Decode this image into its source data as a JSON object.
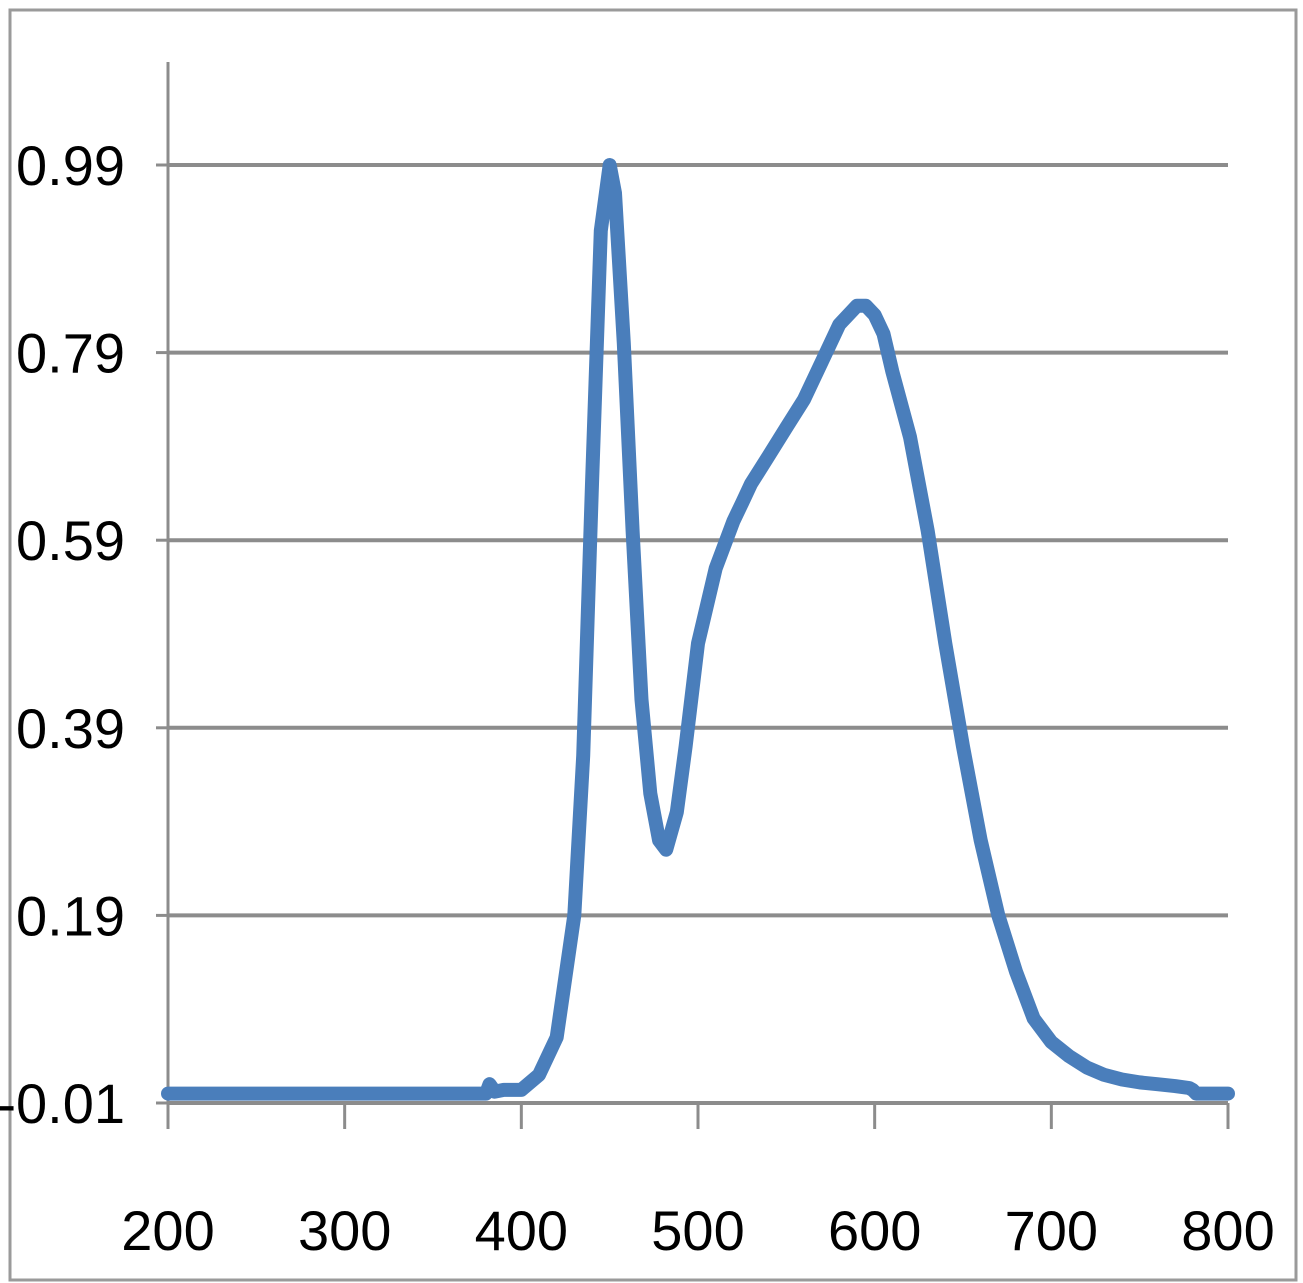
{
  "chart_data": {
    "type": "line",
    "title": "",
    "xlabel": "",
    "ylabel": "",
    "xlim": [
      200,
      800
    ],
    "ylim": [
      -0.01,
      0.99
    ],
    "x_ticks": [
      "200",
      "300",
      "400",
      "500",
      "600",
      "700",
      "800"
    ],
    "y_ticks": [
      "-0.01",
      "0.19",
      "0.39",
      "0.59",
      "0.79",
      "0.99"
    ],
    "grid": "horizontal",
    "legend": "none",
    "series": [
      {
        "color": "#4a7ebb",
        "x": [
          200,
          300,
          380,
          382,
          385,
          390,
          400,
          410,
          420,
          430,
          435,
          440,
          445,
          450,
          453,
          458,
          463,
          468,
          473,
          478,
          482,
          488,
          493,
          500,
          510,
          520,
          525,
          530,
          540,
          550,
          560,
          570,
          580,
          590,
          595,
          600,
          605,
          610,
          620,
          630,
          640,
          650,
          660,
          670,
          680,
          690,
          700,
          710,
          720,
          730,
          740,
          750,
          760,
          770,
          778,
          780,
          782,
          790,
          800
        ],
        "y": [
          0.0,
          0.0,
          0.0,
          0.01,
          0.002,
          0.004,
          0.004,
          0.02,
          0.06,
          0.19,
          0.36,
          0.65,
          0.92,
          0.99,
          0.96,
          0.8,
          0.6,
          0.42,
          0.32,
          0.27,
          0.26,
          0.3,
          0.37,
          0.48,
          0.56,
          0.61,
          0.63,
          0.65,
          0.68,
          0.71,
          0.74,
          0.78,
          0.82,
          0.84,
          0.84,
          0.83,
          0.81,
          0.77,
          0.7,
          0.6,
          0.48,
          0.37,
          0.27,
          0.19,
          0.13,
          0.08,
          0.055,
          0.04,
          0.028,
          0.02,
          0.015,
          0.012,
          0.01,
          0.008,
          0.006,
          0.004,
          0.0,
          0.0,
          0.0
        ]
      }
    ]
  }
}
